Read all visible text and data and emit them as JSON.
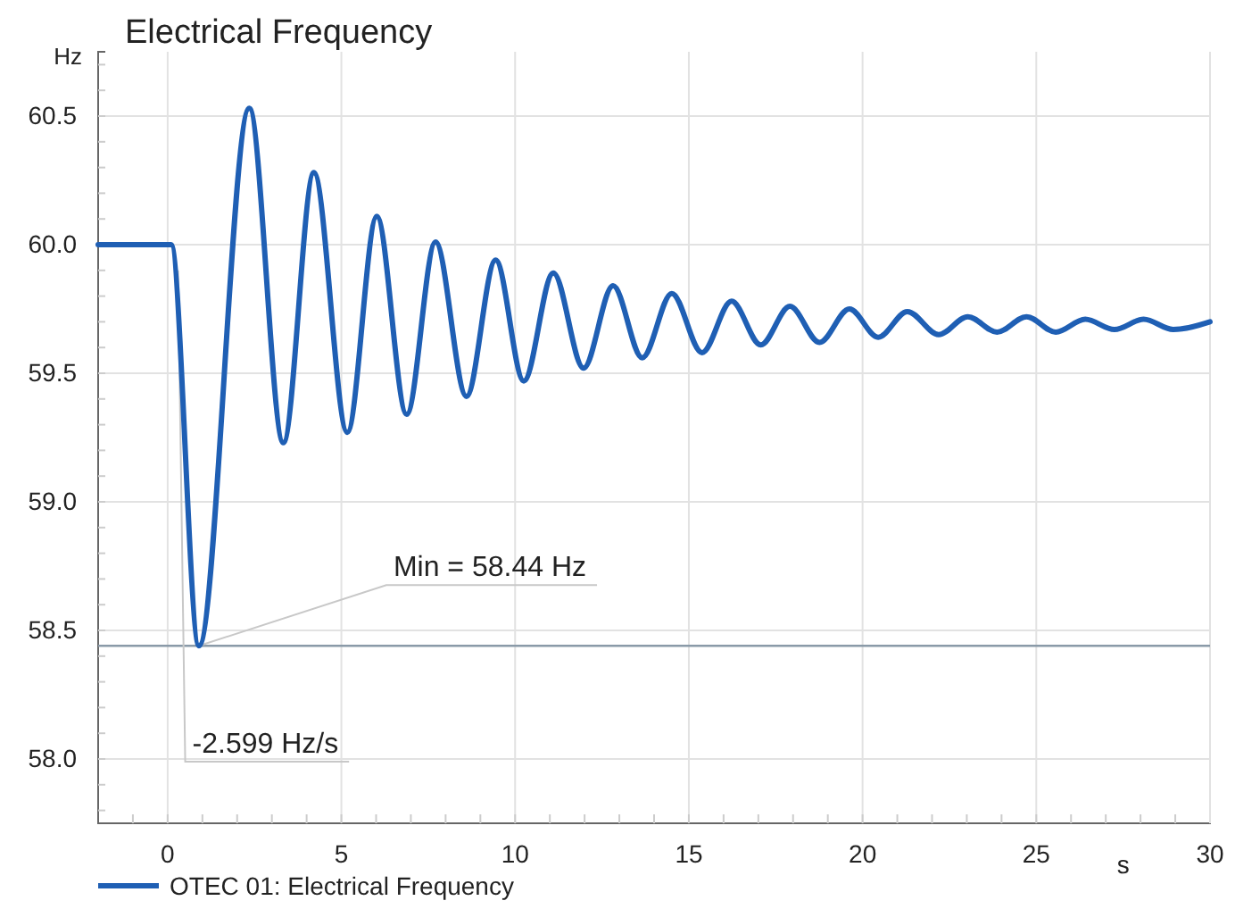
{
  "chart_data": {
    "type": "line",
    "title": "Electrical Frequency",
    "xlabel": "s",
    "ylabel": "Hz",
    "xlim": [
      -2,
      30
    ],
    "ylim": [
      57.75,
      60.75
    ],
    "xticks": [
      {
        "value": -1,
        "label": null
      },
      0,
      {
        "value": 1,
        "label": null
      },
      {
        "value": 2,
        "label": null
      },
      {
        "value": 3,
        "label": null
      },
      {
        "value": 4,
        "label": null
      },
      5,
      {
        "value": 6,
        "label": null
      },
      {
        "value": 7,
        "label": null
      },
      {
        "value": 8,
        "label": null
      },
      {
        "value": 9,
        "label": null
      },
      10,
      {
        "value": 11,
        "label": null
      },
      {
        "value": 12,
        "label": null
      },
      {
        "value": 13,
        "label": null
      },
      {
        "value": 14,
        "label": null
      },
      15,
      {
        "value": 16,
        "label": null
      },
      {
        "value": 17,
        "label": null
      },
      {
        "value": 18,
        "label": null
      },
      {
        "value": 19,
        "label": null
      },
      20,
      {
        "value": 21,
        "label": null
      },
      {
        "value": 22,
        "label": null
      },
      {
        "value": 23,
        "label": null
      },
      {
        "value": 24,
        "label": null
      },
      25,
      {
        "value": 26,
        "label": null
      },
      {
        "value": 27,
        "label": null
      },
      {
        "value": 28,
        "label": null
      },
      {
        "value": 29,
        "label": null
      },
      30
    ],
    "yticks": [
      {
        "value": 57.8,
        "label": null
      },
      {
        "value": 57.9,
        "label": null
      },
      {
        "value": 58,
        "label": "58.0"
      },
      {
        "value": 58.1,
        "label": null
      },
      {
        "value": 58.2,
        "label": null
      },
      {
        "value": 58.3,
        "label": null
      },
      {
        "value": 58.4,
        "label": null
      },
      58.5,
      {
        "value": 58.6,
        "label": null
      },
      {
        "value": 58.7,
        "label": null
      },
      {
        "value": 58.8,
        "label": null
      },
      {
        "value": 58.9,
        "label": null
      },
      {
        "value": 59,
        "label": "59.0"
      },
      {
        "value": 59.1,
        "label": null
      },
      {
        "value": 59.2,
        "label": null
      },
      {
        "value": 59.3,
        "label": null
      },
      {
        "value": 59.4,
        "label": null
      },
      59.5,
      {
        "value": 59.6,
        "label": null
      },
      {
        "value": 59.7,
        "label": null
      },
      {
        "value": 59.8,
        "label": null
      },
      {
        "value": 59.9,
        "label": null
      },
      {
        "value": 60,
        "label": "60.0"
      },
      {
        "value": 60.1,
        "label": null
      },
      {
        "value": 60.2,
        "label": null
      },
      {
        "value": 60.3,
        "label": null
      },
      {
        "value": 60.4,
        "label": null
      },
      60.5,
      {
        "value": 60.6,
        "label": null
      },
      {
        "value": 60.7,
        "label": null
      }
    ],
    "grid": true,
    "legend": "bottom",
    "line_style": "solid",
    "series": [
      {
        "name": "OTEC 01: Electrical Frequency",
        "color": "#1f5fb4",
        "x": [
          -2,
          0.1,
          0.9,
          2.35,
          3.33,
          4.21,
          5.17,
          6.02,
          6.88,
          7.71,
          8.6,
          9.44,
          10.25,
          11.1,
          11.97,
          12.82,
          13.66,
          14.51,
          15.38,
          16.23,
          17.07,
          17.91,
          18.76,
          19.62,
          20.45,
          21.29,
          22.19,
          23.03,
          23.87,
          24.72,
          25.56,
          26.41,
          27.25,
          28.09,
          28.94,
          30
        ],
        "values": [
          60,
          60,
          58.44,
          60.53,
          59.23,
          60.28,
          59.27,
          60.11,
          59.34,
          60.01,
          59.41,
          59.94,
          59.47,
          59.89,
          59.52,
          59.84,
          59.56,
          59.81,
          59.58,
          59.78,
          59.61,
          59.76,
          59.62,
          59.75,
          59.64,
          59.74,
          59.65,
          59.72,
          59.66,
          59.72,
          59.66,
          59.71,
          59.67,
          59.71,
          59.67,
          59.7
        ]
      }
    ],
    "ref_lines": [
      {
        "axis": "y",
        "value": 58.44,
        "color": "#8a9aa8"
      }
    ],
    "annotations": [
      {
        "text": "Min = 58.44 Hz",
        "x": 0.9,
        "y": 58.44
      },
      {
        "text": "-2.599 Hz/s",
        "x": 0.3,
        "y": 59.9
      }
    ]
  }
}
